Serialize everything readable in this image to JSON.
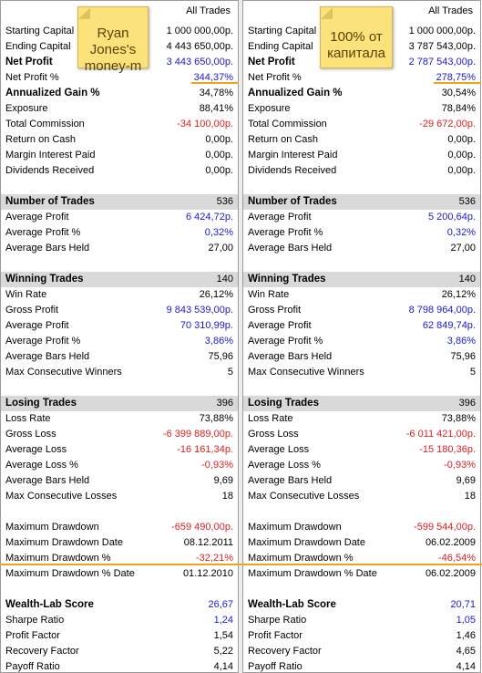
{
  "panels": [
    {
      "title": "All Trades",
      "note": "Ryan Jones's money-m",
      "sections": [
        {
          "rows": [
            {
              "label": "Starting Capital",
              "value": "1 000 000,00р."
            },
            {
              "label": "Ending Capital",
              "value": "4 443 650,00р."
            },
            {
              "label": "Net Profit",
              "value": "3 443 650,00р.",
              "bold": true,
              "color": "blue"
            },
            {
              "label": "Net Profit %",
              "value": "344,37%",
              "color": "blue"
            },
            {
              "label": "Annualized Gain %",
              "value": "34,78%",
              "bold": true
            },
            {
              "label": "Exposure",
              "value": "88,41%"
            },
            {
              "label": "Total Commission",
              "value": "-34 100,00р.",
              "color": "red"
            },
            {
              "label": "Return on Cash",
              "value": "0,00р."
            },
            {
              "label": "Margin Interest Paid",
              "value": "0,00р."
            },
            {
              "label": "Dividends Received",
              "value": "0,00р."
            }
          ]
        },
        {
          "header": {
            "label": "Number of Trades",
            "value": "536"
          },
          "rows": [
            {
              "label": "Average Profit",
              "value": "6 424,72р.",
              "color": "blue"
            },
            {
              "label": "Average Profit %",
              "value": "0,32%",
              "color": "blue"
            },
            {
              "label": "Average Bars Held",
              "value": "27,00"
            }
          ]
        },
        {
          "header": {
            "label": "Winning Trades",
            "value": "140"
          },
          "rows": [
            {
              "label": "Win Rate",
              "value": "26,12%"
            },
            {
              "label": "Gross Profit",
              "value": "9 843 539,00р.",
              "color": "blue"
            },
            {
              "label": "Average Profit",
              "value": "70 310,99р.",
              "color": "blue"
            },
            {
              "label": "Average Profit %",
              "value": "3,86%",
              "color": "blue"
            },
            {
              "label": "Average Bars Held",
              "value": "75,96"
            },
            {
              "label": "Max Consecutive Winners",
              "value": "5"
            }
          ]
        },
        {
          "header": {
            "label": "Losing Trades",
            "value": "396"
          },
          "rows": [
            {
              "label": "Loss Rate",
              "value": "73,88%"
            },
            {
              "label": "Gross Loss",
              "value": "-6 399 889,00р.",
              "color": "red"
            },
            {
              "label": "Average Loss",
              "value": "-16 161,34р.",
              "color": "red"
            },
            {
              "label": "Average Loss %",
              "value": "-0,93%",
              "color": "red"
            },
            {
              "label": "Average Bars Held",
              "value": "9,69"
            },
            {
              "label": "Max Consecutive Losses",
              "value": "18"
            }
          ]
        },
        {
          "rows": [
            {
              "label": "Maximum Drawdown",
              "value": "-659 490,00р.",
              "color": "red"
            },
            {
              "label": "Maximum Drawdown Date",
              "value": "08.12.2011"
            },
            {
              "label": "Maximum Drawdown %",
              "value": "-32,21%",
              "color": "red"
            },
            {
              "label": "Maximum Drawdown % Date",
              "value": "01.12.2010"
            }
          ]
        },
        {
          "rows": [
            {
              "label": "Wealth-Lab Score",
              "value": "26,67",
              "bold": true,
              "color": "blue"
            },
            {
              "label": "Sharpe Ratio",
              "value": "1,24",
              "color": "blue"
            },
            {
              "label": "Profit Factor",
              "value": "1,54"
            },
            {
              "label": "Recovery Factor",
              "value": "5,22"
            },
            {
              "label": "Payoff Ratio",
              "value": "4,14"
            }
          ]
        }
      ]
    },
    {
      "title": "All Trades",
      "note": "100% от капитала",
      "sections": [
        {
          "rows": [
            {
              "label": "Starting Capital",
              "value": "1 000 000,00р."
            },
            {
              "label": "Ending Capital",
              "value": "3 787 543,00р."
            },
            {
              "label": "Net Profit",
              "value": "2 787 543,00р.",
              "bold": true,
              "color": "blue"
            },
            {
              "label": "Net Profit %",
              "value": "278,75%",
              "color": "blue"
            },
            {
              "label": "Annualized Gain %",
              "value": "30,54%",
              "bold": true
            },
            {
              "label": "Exposure",
              "value": "78,84%"
            },
            {
              "label": "Total Commission",
              "value": "-29 672,00р.",
              "color": "red"
            },
            {
              "label": "Return on Cash",
              "value": "0,00р."
            },
            {
              "label": "Margin Interest Paid",
              "value": "0,00р."
            },
            {
              "label": "Dividends Received",
              "value": "0,00р."
            }
          ]
        },
        {
          "header": {
            "label": "Number of Trades",
            "value": "536"
          },
          "rows": [
            {
              "label": "Average Profit",
              "value": "5 200,64р.",
              "color": "blue"
            },
            {
              "label": "Average Profit %",
              "value": "0,32%",
              "color": "blue"
            },
            {
              "label": "Average Bars Held",
              "value": "27,00"
            }
          ]
        },
        {
          "header": {
            "label": "Winning Trades",
            "value": "140"
          },
          "rows": [
            {
              "label": "Win Rate",
              "value": "26,12%"
            },
            {
              "label": "Gross Profit",
              "value": "8 798 964,00р.",
              "color": "blue"
            },
            {
              "label": "Average Profit",
              "value": "62 849,74р.",
              "color": "blue"
            },
            {
              "label": "Average Profit %",
              "value": "3,86%",
              "color": "blue"
            },
            {
              "label": "Average Bars Held",
              "value": "75,96"
            },
            {
              "label": "Max Consecutive Winners",
              "value": "5"
            }
          ]
        },
        {
          "header": {
            "label": "Losing Trades",
            "value": "396"
          },
          "rows": [
            {
              "label": "Loss Rate",
              "value": "73,88%"
            },
            {
              "label": "Gross Loss",
              "value": "-6 011 421,00р.",
              "color": "red"
            },
            {
              "label": "Average Loss",
              "value": "-15 180,36р.",
              "color": "red"
            },
            {
              "label": "Average Loss %",
              "value": "-0,93%",
              "color": "red"
            },
            {
              "label": "Average Bars Held",
              "value": "9,69"
            },
            {
              "label": "Max Consecutive Losses",
              "value": "18"
            }
          ]
        },
        {
          "rows": [
            {
              "label": "Maximum Drawdown",
              "value": "-599 544,00р.",
              "color": "red"
            },
            {
              "label": "Maximum Drawdown Date",
              "value": "06.02.2009"
            },
            {
              "label": "Maximum Drawdown %",
              "value": "-46,54%",
              "color": "red"
            },
            {
              "label": "Maximum Drawdown % Date",
              "value": "06.02.2009"
            }
          ]
        },
        {
          "rows": [
            {
              "label": "Wealth-Lab Score",
              "value": "20,71",
              "bold": true,
              "color": "blue"
            },
            {
              "label": "Sharpe Ratio",
              "value": "1,05",
              "color": "blue"
            },
            {
              "label": "Profit Factor",
              "value": "1,46"
            },
            {
              "label": "Recovery Factor",
              "value": "4,65"
            },
            {
              "label": "Payoff Ratio",
              "value": "4,14"
            }
          ]
        }
      ]
    }
  ],
  "colors": {
    "blue": "#1a1ad6",
    "red": "#e01e1e",
    "header_bg": "#d9d9d9",
    "highlight_line": "#f5a21b",
    "note_bg": "#fbe27a"
  }
}
